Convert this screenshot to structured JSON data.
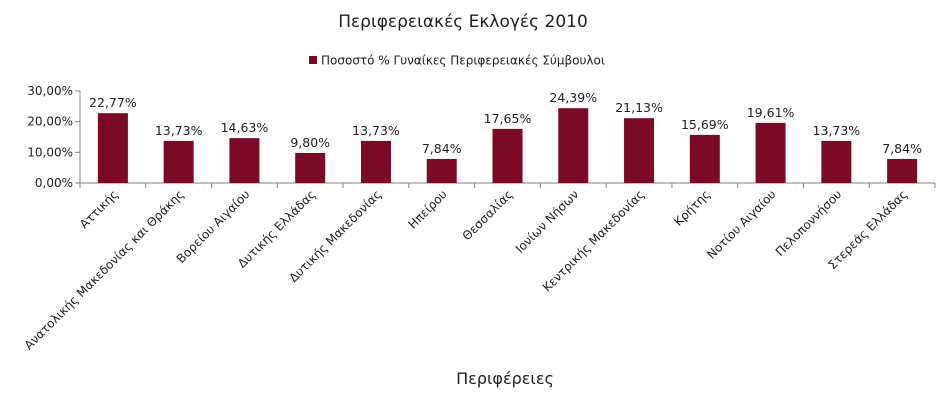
{
  "chart_data": {
    "type": "bar",
    "title": "Περιφερειακές Εκλογές 2010",
    "xlabel": "Περιφέρειες",
    "ylabel": "",
    "ylim": [
      0,
      30
    ],
    "y_ticks": [
      0,
      10,
      20,
      30
    ],
    "y_tick_labels": [
      "0,00%",
      "10,00%",
      "20,00%",
      "30,00%"
    ],
    "grid": false,
    "legend_position": "top",
    "colors": {
      "bar": "#7b0a25",
      "axis": "#808080"
    },
    "categories": [
      "Αττικής",
      "Ανατολικής Μακεδονίας και Θράκης",
      "Βορείου Αιγαίου",
      "Δυτικής Ελλάδας",
      "Δυτικής Μακεδονίας",
      "Ηπείρου",
      "Θεσσαλίας",
      "Ιονίων Νήσων",
      "Κεντρικής Μακεδονίας",
      "Κρήτης",
      "Νοτίου Αιγαίου",
      "Πελοποννήσου",
      "Στερεάς Ελλάδας"
    ],
    "series": [
      {
        "name": "Ποσοστό % Γυναίκες Περιφερειακές Σύμβουλοι",
        "values": [
          22.77,
          13.73,
          14.63,
          9.8,
          13.73,
          7.84,
          17.65,
          24.39,
          21.13,
          15.69,
          19.61,
          13.73,
          7.84
        ],
        "data_labels": [
          "22,77%",
          "13,73%",
          "14,63%",
          "9,80%",
          "13,73%",
          "7,84%",
          "17,65%",
          "24,39%",
          "21,13%",
          "15,69%",
          "19,61%",
          "13,73%",
          "7,84%"
        ]
      }
    ]
  }
}
